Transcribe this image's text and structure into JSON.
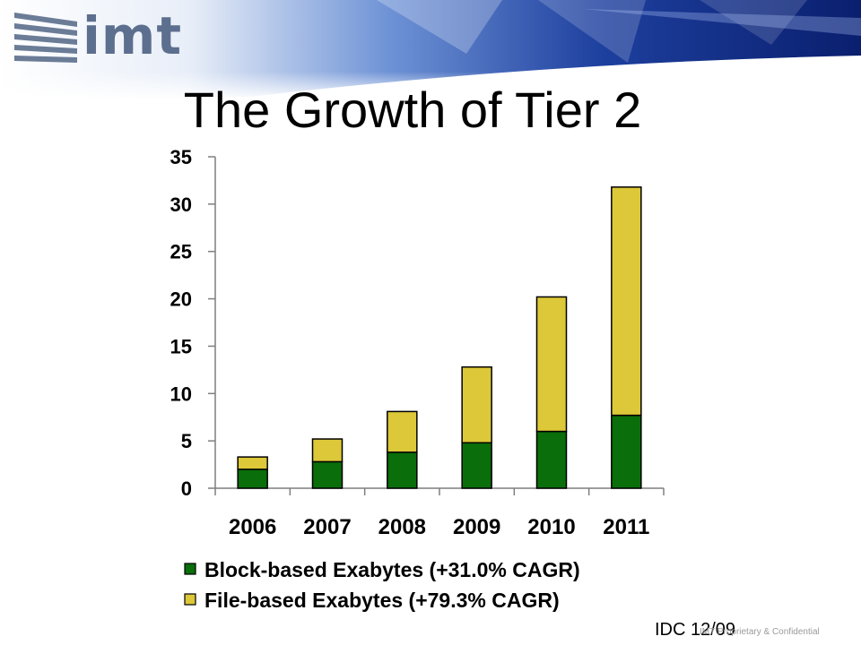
{
  "logo": {
    "text": "imt"
  },
  "slide": {
    "title": "The Growth of Tier 2",
    "source": "IDC 12/09",
    "footer": "IMT Proprietary & Confidential"
  },
  "colors": {
    "block": "#0a6e0a",
    "file": "#dcc838",
    "axis": "#7f7f7f",
    "text": "#000000"
  },
  "chart_data": {
    "type": "bar",
    "stacked": true,
    "title": "The Growth of Tier 2",
    "xlabel": "",
    "ylabel": "",
    "categories": [
      "2006",
      "2007",
      "2008",
      "2009",
      "2010",
      "2011"
    ],
    "series": [
      {
        "name": "Block-based Exabytes (+31.0% CAGR)",
        "values": [
          2.0,
          2.8,
          3.8,
          4.8,
          6.0,
          7.7
        ]
      },
      {
        "name": "File-based Exabytes (+79.3% CAGR)",
        "values": [
          1.3,
          2.4,
          4.3,
          8.0,
          14.2,
          24.1
        ]
      }
    ],
    "ylim": [
      0,
      35
    ],
    "yticks": [
      0,
      5,
      10,
      15,
      20,
      25,
      30,
      35
    ],
    "grid": false,
    "legend": "bottom"
  }
}
